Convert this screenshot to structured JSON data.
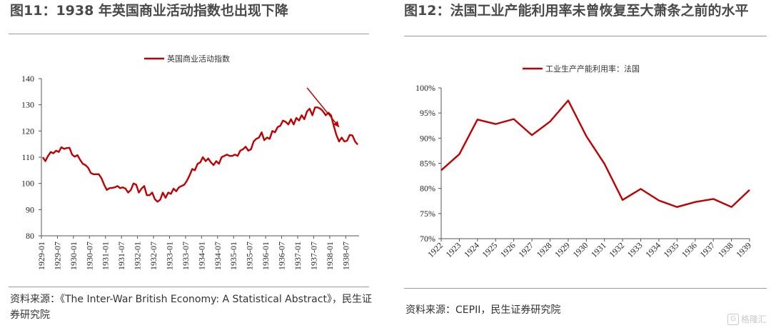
{
  "left": {
    "title": "图11：1938 年英国商业活动指数也出现下降",
    "source": "资料来源：《The Inter-War British Economy: A Statistical Abstract》，民生证券研究院"
  },
  "right": {
    "title": "图12：法国工业产能利用率未曾恢复至大萧条之前的水平",
    "source": "资料来源：CEPII，民生证券研究院"
  },
  "watermark": {
    "text": "格隆汇",
    "icon": "G"
  },
  "chart_data": [
    {
      "id": "uk-business-activity",
      "type": "line",
      "legend_position": "top-center",
      "grid": false,
      "color": "#c00000",
      "ylim": [
        80,
        140
      ],
      "yticks": [
        80,
        90,
        100,
        110,
        120,
        130,
        140
      ],
      "xlabels": [
        "1929-01",
        "1929-07",
        "1930-01",
        "1930-07",
        "1931-01",
        "1931-07",
        "1932-01",
        "1932-07",
        "1933-01",
        "1933-07",
        "1934-01",
        "1934-07",
        "1935-01",
        "1935-07",
        "1936-01",
        "1936-07",
        "1937-01",
        "1937-07",
        "1938-01",
        "1938-07"
      ],
      "series": [
        {
          "name": "英国商业活动指数",
          "values": [
            110,
            108.5,
            110.5,
            112,
            111.5,
            112.5,
            112,
            113.8,
            113.2,
            113.5,
            113.6,
            111,
            110.2,
            110.8,
            109,
            107.5,
            107,
            106,
            104,
            103.5,
            103.5,
            103.5,
            102,
            99.5,
            97.5,
            98.2,
            98.3,
            98.5,
            99,
            98.2,
            98.5,
            98,
            96.5,
            97.5,
            100,
            99.5,
            96.5,
            98,
            99,
            95.5,
            95.5,
            96.5,
            94,
            93,
            93.8,
            96.5,
            94.5,
            96.5,
            96,
            98,
            97,
            98.5,
            99,
            99.5,
            101,
            103,
            105.5,
            105,
            107.5,
            108,
            110,
            108.5,
            109.5,
            108,
            107,
            108.5,
            107.5,
            110,
            110.5,
            111,
            110.5,
            110.5,
            111,
            110.5,
            112.5,
            113,
            114,
            112.5,
            113,
            116,
            117,
            117.5,
            119.5,
            116.5,
            117.5,
            117,
            120,
            119.5,
            121.5,
            122,
            124,
            123.5,
            122.5,
            124.5,
            122.5,
            125,
            124,
            126,
            124.5,
            127.5,
            128.5,
            126,
            129,
            129,
            128.5,
            127.5,
            126,
            127,
            126,
            122,
            118.5,
            116,
            117.5,
            116,
            116.3,
            118.5,
            118.3,
            116,
            114.8
          ]
        }
      ],
      "annotations": [
        {
          "kind": "arrow",
          "meaning": "decline",
          "color": "#c00000"
        }
      ]
    },
    {
      "id": "france-capacity-utilization",
      "type": "line",
      "legend_position": "top-center",
      "grid": false,
      "color": "#c00000",
      "ylim": [
        70,
        100
      ],
      "yticks": [
        "70%",
        "75%",
        "80%",
        "85%",
        "90%",
        "95%",
        "100%"
      ],
      "categories": [
        "1922",
        "1923",
        "1924",
        "1925",
        "1926",
        "1927",
        "1928",
        "1929",
        "1930",
        "1931",
        "1932",
        "1933",
        "1934",
        "1935",
        "1936",
        "1937",
        "1938",
        "1939"
      ],
      "series": [
        {
          "name": "工业生产产能利用率：法国",
          "values": [
            83.6,
            86.8,
            93.7,
            92.8,
            93.8,
            90.6,
            93.3,
            97.5,
            90.4,
            84.9,
            77.7,
            79.9,
            77.6,
            76.3,
            77.3,
            77.9,
            76.3,
            79.7
          ]
        }
      ]
    }
  ]
}
